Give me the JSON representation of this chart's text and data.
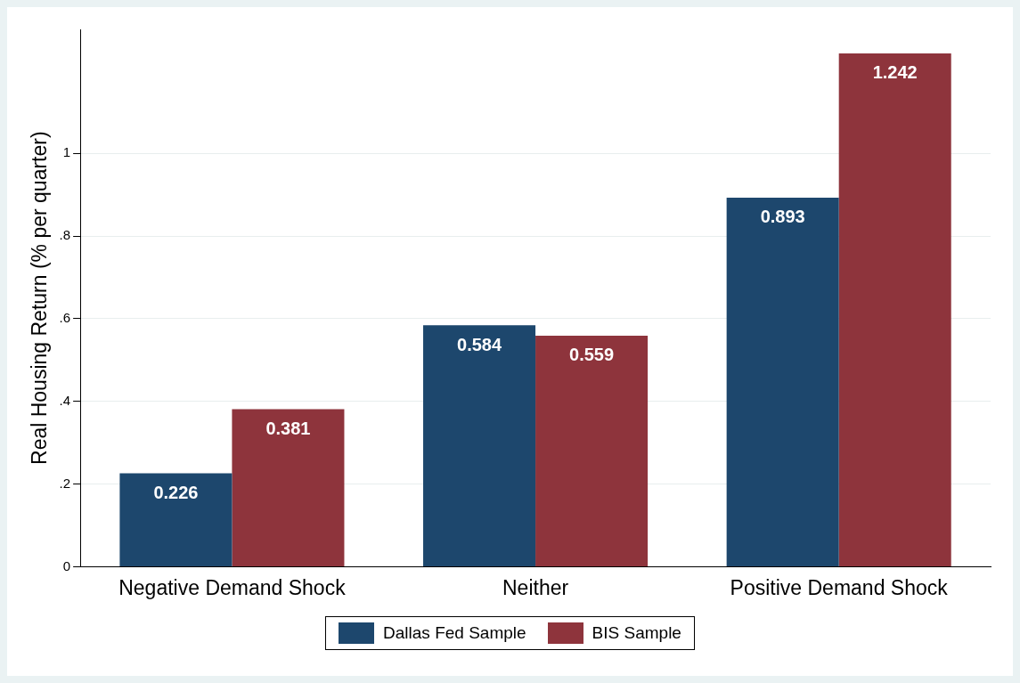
{
  "chart_data": {
    "type": "bar",
    "ylabel": "Real Housing Return (% per quarter)",
    "categories": [
      "Negative Demand Shock",
      "Neither",
      "Positive Demand Shock"
    ],
    "series": [
      {
        "name": "Dallas Fed Sample",
        "color": "#1d476d",
        "values": [
          0.226,
          0.584,
          0.893
        ]
      },
      {
        "name": "BIS Sample",
        "color": "#8e343c",
        "values": [
          0.381,
          0.559,
          1.242
        ]
      }
    ],
    "ylim": [
      0,
      1.3
    ],
    "yticks": [
      0,
      {
        "value": 0.2,
        "label": ".2"
      },
      {
        "value": 0.4,
        "label": ".4"
      },
      {
        "value": 0.6,
        "label": ".6"
      },
      {
        "value": 0.8,
        "label": ".8"
      },
      1
    ],
    "grid": "y",
    "legend": "bottom",
    "data_labels": true
  }
}
